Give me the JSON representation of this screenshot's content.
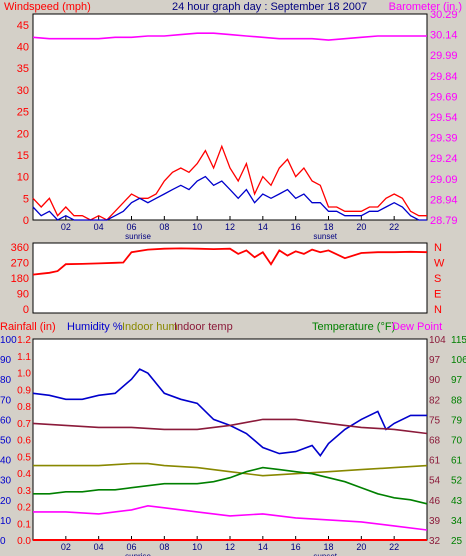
{
  "colors": {
    "background": "#d4d0c8",
    "plot_bg": "#ffffff",
    "frame": "#000000",
    "red": "#ff0000",
    "blue": "#0000cc",
    "magenta": "#ff00ff",
    "green": "#008000",
    "olive": "#888800",
    "maroon": "#8b1a3a",
    "title_blue": "#000080"
  },
  "chart_data": [
    {
      "type": "line",
      "title": "24 hour graph day : September 18 2007",
      "left_axis_label": "Windspeed (mph)",
      "right_axis_label": "Barometer (in.)",
      "x_ticks": [
        "02",
        "04",
        "06",
        "08",
        "10",
        "12",
        "14",
        "16",
        "18",
        "20",
        "22"
      ],
      "x_markers": [
        "sunrise",
        "sunset"
      ],
      "y_left_ticks": [
        "0",
        "5",
        "10",
        "15",
        "20",
        "25",
        "30",
        "35",
        "40",
        "45"
      ],
      "y_right_ticks": [
        "28.79",
        "28.94",
        "29.09",
        "29.24",
        "29.39",
        "29.54",
        "29.69",
        "29.84",
        "29.99",
        "30.14",
        "30.29"
      ],
      "ylim_left": [
        0,
        47.5
      ],
      "ylim_right": [
        28.79,
        30.29
      ],
      "grid": false,
      "series": [
        {
          "name": "Barometer",
          "color": "#ff00ff",
          "axis": "right",
          "x": [
            0,
            1,
            2,
            3,
            4,
            5,
            6,
            7,
            8,
            9,
            10,
            11,
            12,
            13,
            14,
            15,
            16,
            17,
            18,
            19,
            20,
            21,
            22,
            23,
            24
          ],
          "y": [
            30.12,
            30.11,
            30.11,
            30.11,
            30.11,
            30.12,
            30.12,
            30.13,
            30.13,
            30.14,
            30.15,
            30.15,
            30.14,
            30.13,
            30.12,
            30.11,
            30.11,
            30.11,
            30.1,
            30.11,
            30.12,
            30.13,
            30.13,
            30.13,
            30.13
          ]
        },
        {
          "name": "Gust",
          "color": "#ff0000",
          "axis": "left",
          "x": [
            0,
            0.5,
            1,
            1.5,
            2,
            2.5,
            3,
            3.5,
            4,
            4.5,
            5,
            5.5,
            6,
            6.5,
            7,
            7.5,
            8,
            8.5,
            9,
            9.5,
            10,
            10.5,
            11,
            11.5,
            12,
            12.5,
            13,
            13.5,
            14,
            14.5,
            15,
            15.5,
            16,
            16.5,
            17,
            17.5,
            18,
            18.5,
            19,
            19.5,
            20,
            20.5,
            21,
            21.5,
            22,
            22.5,
            23,
            23.5,
            24
          ],
          "y": [
            5,
            3,
            5,
            1,
            3,
            1,
            1,
            0,
            1,
            0,
            2,
            4,
            6,
            5,
            5,
            6,
            9,
            11,
            12,
            11,
            13,
            16,
            12,
            17,
            12,
            9,
            13,
            6,
            10,
            8,
            12,
            14,
            10,
            12,
            9,
            8,
            3,
            3,
            2,
            2,
            2,
            3,
            3,
            5,
            6,
            5,
            2,
            1,
            1
          ]
        },
        {
          "name": "Wind speed",
          "color": "#0000cc",
          "axis": "left",
          "x": [
            0,
            0.5,
            1,
            1.5,
            2,
            2.5,
            3,
            3.5,
            4,
            4.5,
            5,
            5.5,
            6,
            6.5,
            7,
            7.5,
            8,
            8.5,
            9,
            9.5,
            10,
            10.5,
            11,
            11.5,
            12,
            12.5,
            13,
            13.5,
            14,
            14.5,
            15,
            15.5,
            16,
            16.5,
            17,
            17.5,
            18,
            18.5,
            19,
            19.5,
            20,
            20.5,
            21,
            21.5,
            22,
            22.5,
            23,
            23.5,
            24
          ],
          "y": [
            3,
            1,
            2,
            0,
            1,
            0,
            0,
            0,
            0,
            0,
            1,
            2,
            4,
            5,
            4,
            5,
            6,
            7,
            8,
            7,
            9,
            10,
            8,
            9,
            7,
            5,
            7,
            4,
            6,
            5,
            6,
            7,
            5,
            6,
            4,
            4,
            2,
            2,
            1,
            1,
            1,
            2,
            2,
            3,
            4,
            3,
            1,
            0,
            0
          ]
        }
      ]
    },
    {
      "type": "line",
      "y_left_ticks": [
        "0",
        "90",
        "180",
        "270",
        "360"
      ],
      "y_right_ticks": [
        "N",
        "E",
        "S",
        "W",
        "N"
      ],
      "ylim_left": [
        0,
        360
      ],
      "series": [
        {
          "name": "Wind direction",
          "color": "#ff0000",
          "x": [
            0,
            0.5,
            1,
            1.5,
            2,
            3,
            4,
            5,
            5.5,
            6,
            7,
            8,
            9,
            10,
            11,
            12,
            12.5,
            13,
            13.5,
            14,
            14.5,
            15,
            15.5,
            16,
            16.5,
            17,
            17.5,
            18,
            19,
            20,
            21,
            22,
            23,
            24
          ],
          "y": [
            200,
            205,
            210,
            220,
            260,
            262,
            265,
            268,
            270,
            330,
            345,
            350,
            352,
            350,
            348,
            350,
            320,
            340,
            300,
            330,
            260,
            340,
            310,
            335,
            320,
            345,
            330,
            340,
            295,
            325,
            330,
            330,
            332,
            330
          ]
        }
      ]
    },
    {
      "type": "line",
      "left_axis_labels": [
        "Rainfall (in)",
        "Humidity %",
        "Indoor hum",
        "Indoor temp"
      ],
      "right_axis_labels": [
        "Temperature (°F)",
        "Dew Point"
      ],
      "x_ticks": [
        "02",
        "04",
        "06",
        "08",
        "10",
        "12",
        "14",
        "16",
        "18",
        "20",
        "22"
      ],
      "x_markers": [
        "sunrise",
        "sunset"
      ],
      "y_rain_ticks": [
        "0.0",
        "0.1",
        "0.2",
        "0.3",
        "0.4",
        "0.5",
        "0.6",
        "0.7",
        "0.8",
        "0.9",
        "1.0",
        "1.1",
        "1.2"
      ],
      "y_humidity_ticks": [
        "0",
        "10",
        "20",
        "30",
        "40",
        "50",
        "60",
        "70",
        "80",
        "90",
        "100"
      ],
      "y_temp_outer_ticks": [
        "25",
        "34",
        "43",
        "52",
        "61",
        "70",
        "79",
        "88",
        "97",
        "106",
        "115"
      ],
      "y_temp_inner_ticks": [
        "32",
        "39",
        "46",
        "54",
        "61",
        "68",
        "75",
        "82",
        "90",
        "97",
        "104"
      ],
      "ylim_humidity": [
        0,
        100
      ],
      "ylim_rain": [
        0,
        1.2
      ],
      "ylim_temp": [
        25,
        115
      ],
      "series": [
        {
          "name": "Humidity %",
          "color": "#0000cc",
          "axis": "humidity",
          "x": [
            0,
            1,
            2,
            3,
            4,
            5,
            6,
            6.5,
            7,
            7.5,
            8,
            9,
            10,
            11,
            12,
            13,
            14,
            15,
            16,
            17,
            17.5,
            18,
            19,
            20,
            21,
            21.5,
            22,
            23,
            24
          ],
          "y": [
            73,
            72,
            70,
            70,
            72,
            73,
            80,
            85,
            83,
            78,
            73,
            70,
            68,
            60,
            57,
            53,
            46,
            43,
            44,
            47,
            42,
            48,
            55,
            60,
            64,
            55,
            58,
            62,
            62
          ]
        },
        {
          "name": "Indoor temp",
          "color": "#8b1a3a",
          "axis": "humidity",
          "x": [
            0,
            2,
            4,
            6,
            8,
            10,
            12,
            14,
            16,
            18,
            20,
            22,
            24
          ],
          "y": [
            58,
            57,
            56,
            56,
            55,
            55,
            57,
            60,
            60,
            58,
            56,
            55,
            53
          ]
        },
        {
          "name": "Indoor hum",
          "color": "#888800",
          "axis": "humidity",
          "x": [
            0,
            2,
            4,
            6,
            7,
            8,
            10,
            12,
            14,
            16,
            18,
            20,
            22,
            24
          ],
          "y": [
            37,
            37,
            37,
            38,
            38,
            37,
            36,
            34,
            32,
            33,
            34,
            35,
            36,
            37
          ]
        },
        {
          "name": "Temperature (°F)",
          "color": "#008000",
          "axis": "humidity",
          "x": [
            0,
            1,
            2,
            3,
            4,
            5,
            6,
            7,
            8,
            9,
            10,
            11,
            12,
            13,
            14,
            15,
            16,
            17,
            18,
            19,
            20,
            21,
            22,
            23,
            24
          ],
          "y": [
            23,
            23,
            24,
            24,
            25,
            25,
            26,
            27,
            28,
            28,
            28,
            29,
            31,
            34,
            36,
            35,
            34,
            33,
            31,
            29,
            26,
            23,
            21,
            20,
            18
          ]
        },
        {
          "name": "Dew Point",
          "color": "#ff00ff",
          "axis": "humidity",
          "x": [
            0,
            2,
            4,
            6,
            7,
            8,
            10,
            12,
            14,
            16,
            18,
            20,
            22,
            24
          ],
          "y": [
            14,
            14,
            13,
            15,
            17,
            16,
            14,
            12,
            13,
            11,
            10,
            9,
            7,
            5
          ]
        },
        {
          "name": "Rainfall (in)",
          "color": "#ff0000",
          "axis": "rain",
          "x": [
            0,
            24
          ],
          "y": [
            0,
            0
          ]
        }
      ]
    }
  ]
}
